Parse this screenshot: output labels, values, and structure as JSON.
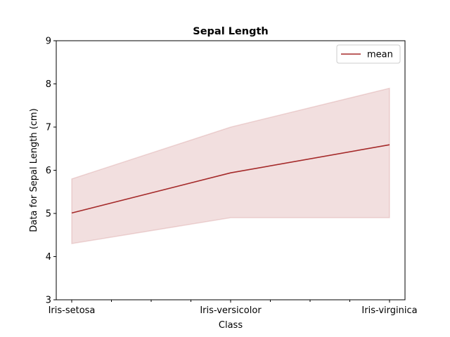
{
  "chart_data": {
    "type": "line",
    "title": "Sepal Length",
    "xlabel": "Class",
    "ylabel": "Data for Sepal Length (cm)",
    "categories": [
      "Iris-setosa",
      "Iris-versicolor",
      "Iris-virginica"
    ],
    "series": [
      {
        "name": "mean",
        "values": [
          5.01,
          5.94,
          6.59
        ],
        "color": "#a52a2a"
      }
    ],
    "band": {
      "lower": [
        4.3,
        4.9,
        4.9
      ],
      "upper": [
        5.8,
        7.0,
        7.9
      ],
      "color": "#a52a2a",
      "opacity": 0.15
    },
    "ylim": [
      3,
      9
    ],
    "yticks": [
      3,
      4,
      5,
      6,
      7,
      8,
      9
    ],
    "minor_xticks": 9,
    "grid": false,
    "legend_position": "top-right"
  }
}
